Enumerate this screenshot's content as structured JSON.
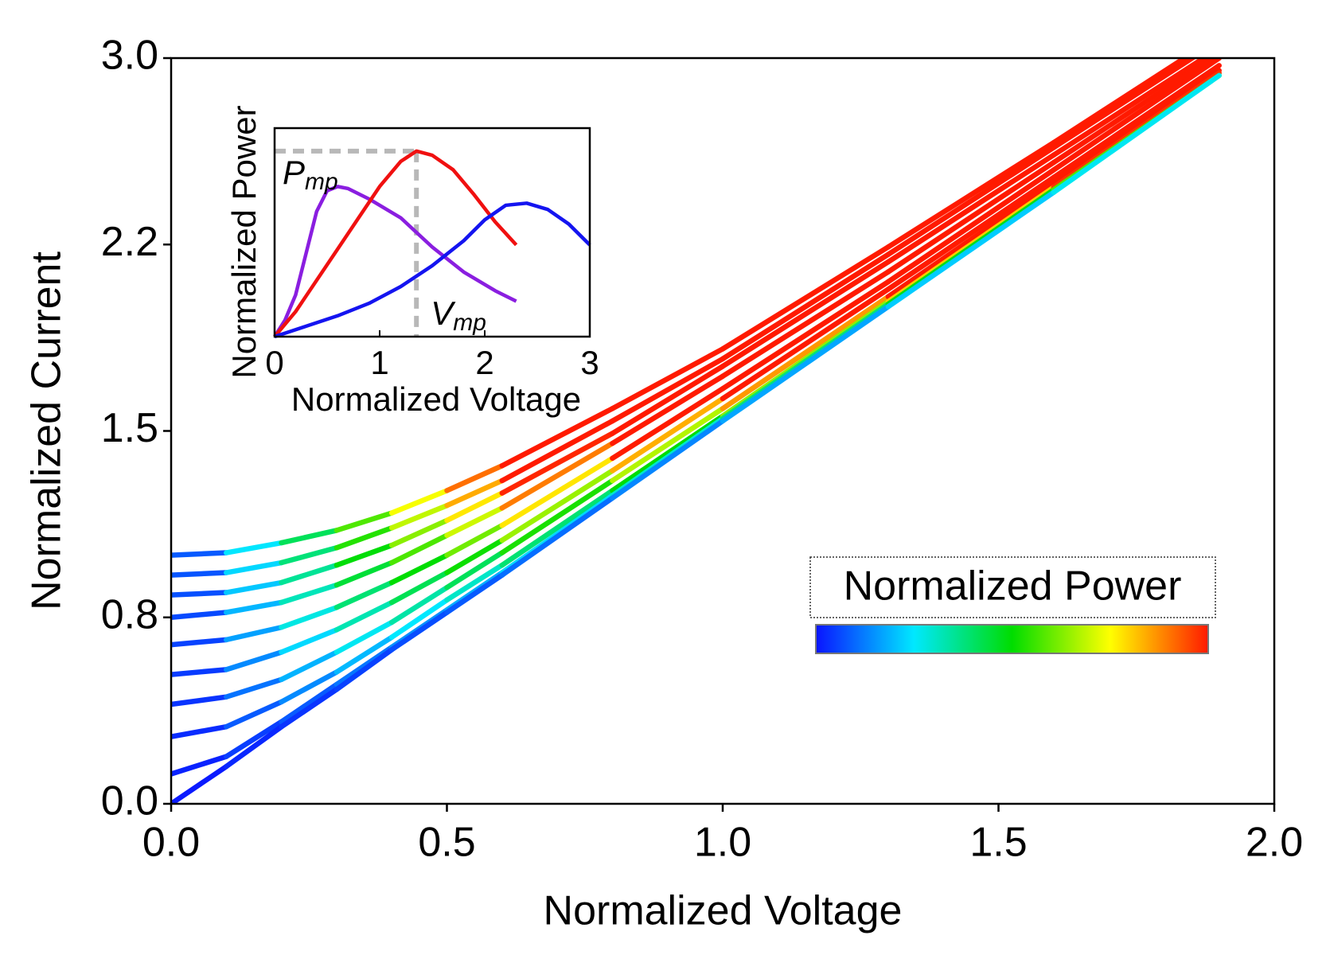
{
  "chart_data": [
    {
      "type": "line",
      "x_label": "Normalized Voltage",
      "y_label": "Normalized Current",
      "x": [
        0,
        0.1,
        0.2,
        0.3,
        0.4,
        0.5,
        0.6,
        0.8,
        1.0,
        1.3,
        1.6,
        1.9
      ],
      "series": [
        {
          "values": [
            1.0,
            1.01,
            1.05,
            1.1,
            1.17,
            1.26,
            1.36,
            1.59,
            1.83,
            2.24,
            2.66,
            3.09
          ]
        },
        {
          "values": [
            0.92,
            0.93,
            0.97,
            1.03,
            1.11,
            1.2,
            1.3,
            1.54,
            1.79,
            2.21,
            2.64,
            3.07
          ]
        },
        {
          "values": [
            0.84,
            0.85,
            0.89,
            0.96,
            1.04,
            1.14,
            1.25,
            1.49,
            1.76,
            2.18,
            2.61,
            3.04
          ]
        },
        {
          "values": [
            0.75,
            0.77,
            0.81,
            0.88,
            0.97,
            1.08,
            1.19,
            1.45,
            1.72,
            2.14,
            2.58,
            3.02
          ]
        },
        {
          "values": [
            0.64,
            0.66,
            0.71,
            0.79,
            0.89,
            1.0,
            1.12,
            1.39,
            1.67,
            2.1,
            2.55,
            3.0
          ]
        },
        {
          "values": [
            0.52,
            0.54,
            0.61,
            0.7,
            0.81,
            0.93,
            1.06,
            1.34,
            1.63,
            2.07,
            2.52,
            2.97
          ]
        },
        {
          "values": [
            0.4,
            0.43,
            0.5,
            0.61,
            0.73,
            0.87,
            1.01,
            1.3,
            1.59,
            2.04,
            2.5,
            2.95
          ]
        },
        {
          "values": [
            0.27,
            0.31,
            0.41,
            0.53,
            0.67,
            0.82,
            0.96,
            1.26,
            1.56,
            2.02,
            2.48,
            2.94
          ]
        },
        {
          "values": [
            0.12,
            0.19,
            0.33,
            0.48,
            0.63,
            0.78,
            0.93,
            1.24,
            1.55,
            2.01,
            2.47,
            2.93
          ]
        },
        {
          "values": [
            0,
            0.15,
            0.31,
            0.46,
            0.62,
            0.77,
            0.92,
            1.23,
            1.54,
            2.0,
            2.46,
            2.93
          ]
        }
      ],
      "xlim": [
        0,
        2
      ],
      "ylim": [
        0,
        3
      ],
      "xticks": [
        {
          "value": 0,
          "label": "0.0"
        },
        0.5,
        {
          "value": 1,
          "label": "1.0"
        },
        1.5,
        {
          "value": 2,
          "label": "2.0"
        }
      ],
      "yticks": [
        {
          "value": 0,
          "label": "0.0"
        },
        {
          "value": 0.75,
          "label": "0.8"
        },
        1.5,
        {
          "value": 2.25,
          "label": "2.2"
        },
        {
          "value": 3,
          "label": "3.0"
        }
      ],
      "colorbar": {
        "title": "Normalized Power",
        "colors": [
          "#0a14ff",
          "#00e8ff",
          "#00dd00",
          "#ffff00",
          "#ff1a00"
        ]
      }
    },
    {
      "type": "line",
      "x_label": "Normalized Voltage",
      "y_label": "Normalized Power",
      "series": [
        {
          "color": "#8a1ee0",
          "x": [
            0,
            0.1,
            0.2,
            0.3,
            0.4,
            0.5,
            0.6,
            0.7,
            0.9,
            1.2,
            1.5,
            1.8,
            2.1,
            2.3
          ],
          "values": [
            0,
            0.08,
            0.2,
            0.4,
            0.6,
            0.7,
            0.72,
            0.71,
            0.66,
            0.57,
            0.43,
            0.31,
            0.22,
            0.17
          ]
        },
        {
          "color": "#f01010",
          "x": [
            0,
            0.2,
            0.4,
            0.6,
            0.8,
            1.0,
            1.2,
            1.35,
            1.5,
            1.7,
            1.9,
            2.1,
            2.3
          ],
          "values": [
            0,
            0.12,
            0.27,
            0.42,
            0.57,
            0.72,
            0.84,
            0.89,
            0.87,
            0.8,
            0.68,
            0.55,
            0.44
          ]
        },
        {
          "color": "#1414f0",
          "x": [
            0,
            0.3,
            0.6,
            0.9,
            1.2,
            1.5,
            1.8,
            2.0,
            2.2,
            2.4,
            2.6,
            2.8,
            3.0
          ],
          "values": [
            0,
            0.05,
            0.1,
            0.16,
            0.24,
            0.34,
            0.46,
            0.56,
            0.63,
            0.64,
            0.61,
            0.54,
            0.44
          ]
        }
      ],
      "vmp": 1.35,
      "pmp": 0.89,
      "annotations": [
        {
          "text": "P",
          "sub": "mp"
        },
        {
          "text": "V",
          "sub": "mp"
        }
      ],
      "xlim": [
        0,
        3
      ],
      "ylim": [
        0,
        1
      ],
      "xticks": [
        0,
        1,
        2,
        3
      ]
    }
  ]
}
